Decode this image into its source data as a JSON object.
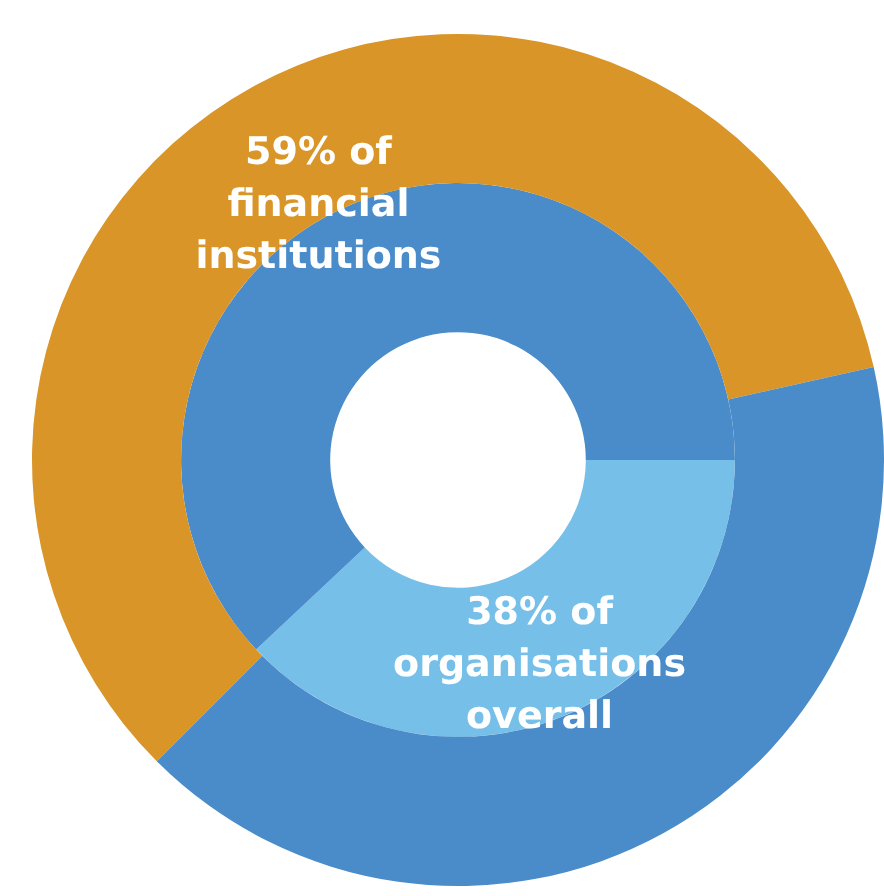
{
  "chart_data": {
    "type": "donut",
    "legend": false,
    "series": [
      {
        "name": "59% of financial institutions",
        "values": [
          59,
          41
        ],
        "colors": [
          "#d99528",
          "#4a8cc9"
        ]
      },
      {
        "name": "38% of organisations overall",
        "values": [
          38,
          62
        ],
        "colors": [
          "#76bfe8",
          "#4a8cc9"
        ]
      }
    ]
  }
}
